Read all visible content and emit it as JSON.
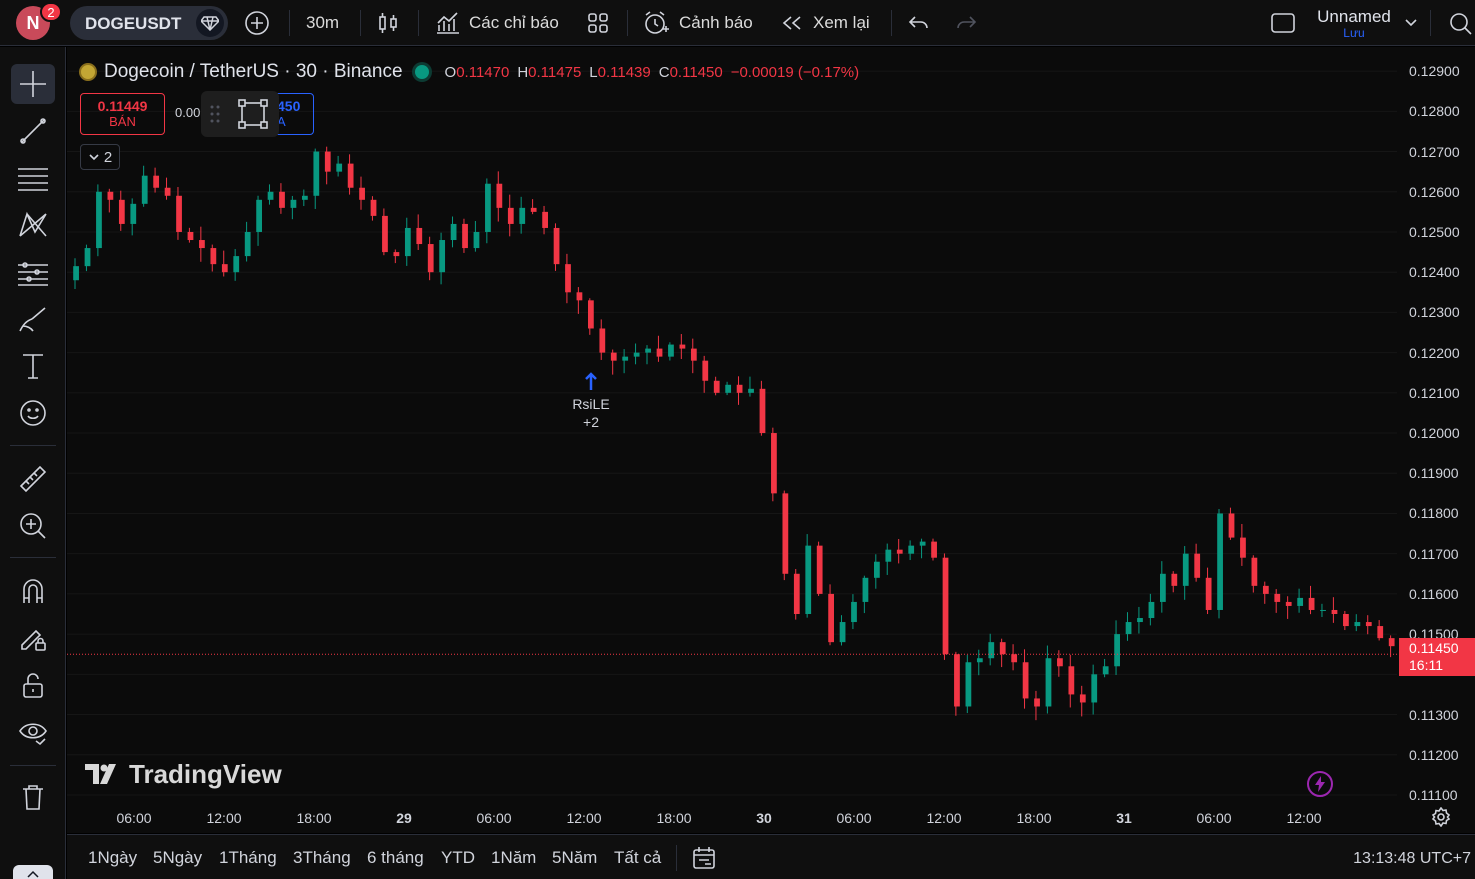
{
  "header": {
    "avatar_letter": "N",
    "notification_count": "2",
    "symbol": "DOGEUSDT",
    "interval": "30m",
    "indicators_label": "Các chỉ báo",
    "alerts_label": "Cảnh báo",
    "replay_label": "Xem lại",
    "layout_name": "Unnamed",
    "save_label": "Lưu"
  },
  "legend": {
    "title": "Dogecoin / TetherUS · 30 · Binance",
    "open_key": "O",
    "open": "0.11470",
    "high_key": "H",
    "high": "0.11475",
    "low_key": "L",
    "low": "0.11439",
    "close_key": "C",
    "close": "0.11450",
    "change": "−0.00019 (−0.17%)"
  },
  "trade": {
    "sell_price": "0.11449",
    "sell_label": "BÁN",
    "spread": "0.00",
    "buy_price": "450",
    "buy_label": "A"
  },
  "collapse_count": "2",
  "marker": {
    "label": "RsiLE",
    "extra": "+2"
  },
  "watermark": "TradingView",
  "current_price": {
    "value": "0.11450",
    "countdown": "16:11"
  },
  "price_labels": [
    "0.12900",
    "0.12800",
    "0.12700",
    "0.12600",
    "0.12500",
    "0.12400",
    "0.12300",
    "0.12200",
    "0.12100",
    "0.12000",
    "0.11900",
    "0.11800",
    "0.11700",
    "0.11600",
    "0.11500",
    "0.11300",
    "0.11200",
    "0.11100"
  ],
  "time_labels": [
    "06:00",
    "12:00",
    "18:00",
    "29",
    "06:00",
    "12:00",
    "18:00",
    "30",
    "06:00",
    "12:00",
    "18:00",
    "31",
    "06:00",
    "12:00"
  ],
  "ranges": [
    "1Ngày",
    "5Ngày",
    "1Tháng",
    "3Tháng",
    "6 tháng",
    "YTD",
    "1Năm",
    "5Năm",
    "Tất cả"
  ],
  "clock": "13:13:48 UTC+7",
  "colors": {
    "up": "#089981",
    "down": "#f23645",
    "accent": "#2962ff"
  },
  "chart_data": {
    "type": "candlestick",
    "ylim": [
      0.1108,
      0.1296
    ],
    "x_ticks": [
      "06:00",
      "12:00",
      "18:00",
      "29",
      "06:00",
      "12:00",
      "18:00",
      "30",
      "06:00",
      "12:00",
      "18:00",
      "31",
      "06:00",
      "12:00"
    ],
    "close": [
      0.12415,
      0.1246,
      0.126,
      0.1258,
      0.1252,
      0.1257,
      0.1264,
      0.1261,
      0.1259,
      0.125,
      0.1248,
      0.1246,
      0.1242,
      0.124,
      0.1244,
      0.125,
      0.1258,
      0.126,
      0.1256,
      0.1258,
      0.1259,
      0.127,
      0.1265,
      0.1267,
      0.1261,
      0.1258,
      0.1254,
      0.1245,
      0.1244,
      0.1251,
      0.1247,
      0.124,
      0.1248,
      0.1252,
      0.1246,
      0.125,
      0.1262,
      0.1256,
      0.1252,
      0.1256,
      0.1255,
      0.1251,
      0.1242,
      0.1235,
      0.1233,
      0.1226,
      0.122,
      0.1218,
      0.1219,
      0.122,
      0.1221,
      0.1219,
      0.1222,
      0.1221,
      0.1218,
      0.1213,
      0.121,
      0.1212,
      0.121,
      0.1211,
      0.12,
      0.1185,
      0.1165,
      0.1155,
      0.1172,
      0.116,
      0.1148,
      0.1153,
      0.1158,
      0.1164,
      0.1168,
      0.1171,
      0.117,
      0.1172,
      0.1173,
      0.1169,
      0.1145,
      0.1132,
      0.1143,
      0.1144,
      0.1148,
      0.1145,
      0.1143,
      0.1134,
      0.1132,
      0.1144,
      0.1142,
      0.1135,
      0.1133,
      0.114,
      0.1142,
      0.115,
      0.1153,
      0.1154,
      0.1158,
      0.1165,
      0.1162,
      0.117,
      0.1164,
      0.1156,
      0.118,
      0.1174,
      0.1169,
      0.1162,
      0.116,
      0.1158,
      0.1157,
      0.1159,
      0.1156,
      0.1156,
      0.1155,
      0.1152,
      0.1153,
      0.1152,
      0.1149,
      0.1147,
      0.1146,
      0.1145
    ]
  }
}
